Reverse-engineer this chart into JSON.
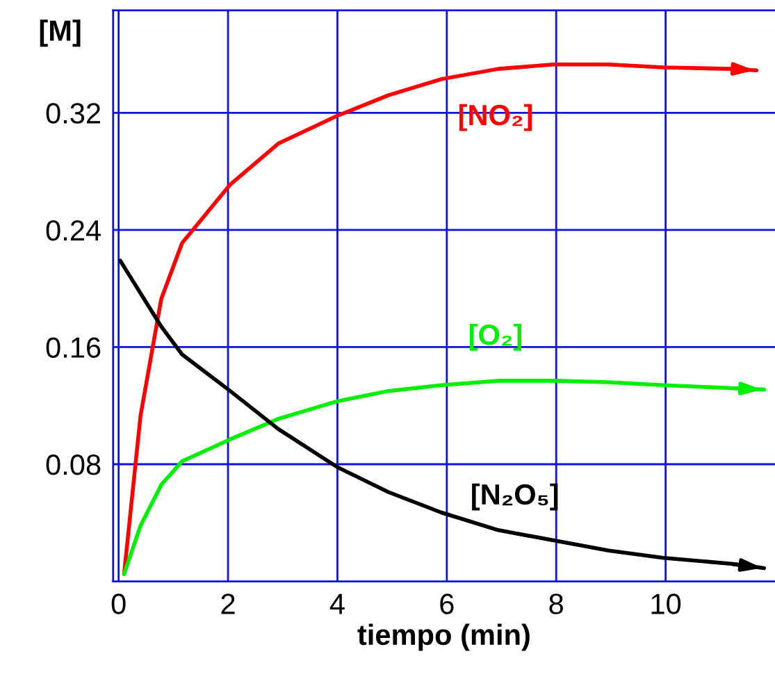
{
  "chart_data": {
    "type": "line",
    "xlabel": "tiempo (min)",
    "ylabel": "[M]",
    "xlim": [
      -0.1,
      12
    ],
    "ylim": [
      0,
      0.39
    ],
    "xticks": [
      0,
      2,
      4,
      6,
      8,
      10
    ],
    "yticks": [
      0.08,
      0.16,
      0.24,
      0.32
    ],
    "grid": true,
    "marker": "none",
    "line_style": "solid",
    "series": [
      {
        "name": "[NO₂]",
        "color": "#ff0000",
        "x": [
          0.1,
          0.4,
          0.78,
          1.16,
          2.04,
          2.92,
          4.0,
          4.93,
          5.9,
          6.94,
          7.95,
          8.96,
          9.96,
          11.2,
          11.66
        ],
        "values": [
          0.005,
          0.113,
          0.193,
          0.231,
          0.271,
          0.299,
          0.318,
          0.332,
          0.343,
          0.35,
          0.353,
          0.353,
          0.351,
          0.35,
          0.349
        ]
      },
      {
        "name": "[O₂]",
        "color": "#00ee00",
        "x": [
          0.1,
          0.4,
          0.78,
          1.16,
          2.04,
          2.92,
          4.0,
          4.93,
          5.9,
          6.94,
          7.95,
          8.96,
          9.96,
          11.2,
          11.8
        ],
        "values": [
          0.005,
          0.038,
          0.066,
          0.082,
          0.097,
          0.111,
          0.123,
          0.13,
          0.134,
          0.137,
          0.137,
          0.136,
          0.134,
          0.132,
          0.131
        ]
      },
      {
        "name": "[N₂O₅]",
        "color": "#000000",
        "x": [
          0.03,
          0.78,
          1.16,
          2.04,
          2.92,
          4.0,
          4.93,
          5.9,
          6.94,
          7.95,
          8.96,
          9.96,
          11.2,
          11.8
        ],
        "values": [
          0.219,
          0.174,
          0.155,
          0.13,
          0.104,
          0.078,
          0.061,
          0.047,
          0.035,
          0.028,
          0.021,
          0.016,
          0.012,
          0.009
        ]
      }
    ]
  }
}
